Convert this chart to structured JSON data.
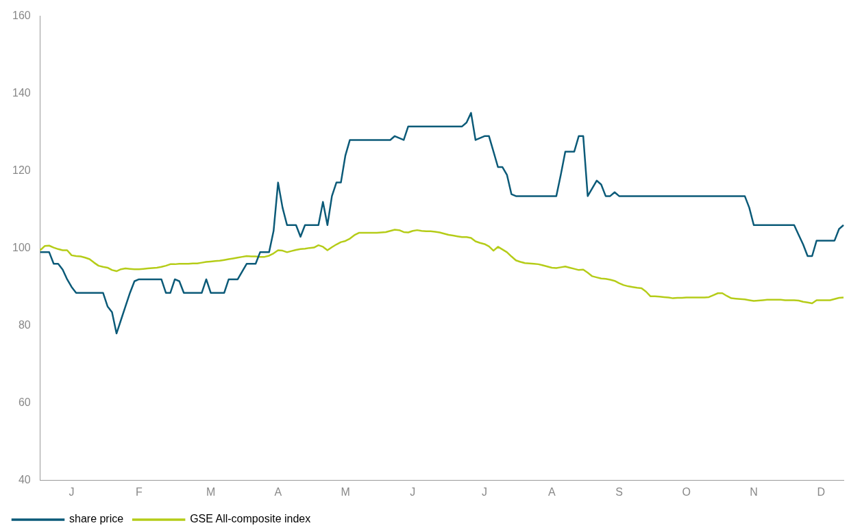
{
  "chart_data": {
    "type": "line",
    "categories": [
      null,
      null,
      null,
      null,
      null,
      null,
      null,
      "J",
      null,
      null,
      null,
      null,
      null,
      null,
      null,
      null,
      null,
      null,
      null,
      null,
      null,
      null,
      "F",
      null,
      null,
      null,
      null,
      null,
      null,
      null,
      null,
      null,
      null,
      null,
      null,
      null,
      null,
      null,
      "M",
      null,
      null,
      null,
      null,
      null,
      null,
      null,
      null,
      null,
      null,
      null,
      null,
      null,
      null,
      "A",
      null,
      null,
      null,
      null,
      null,
      null,
      null,
      null,
      null,
      null,
      null,
      null,
      null,
      null,
      "M",
      null,
      null,
      null,
      null,
      null,
      null,
      null,
      null,
      null,
      null,
      null,
      null,
      null,
      null,
      "J",
      null,
      null,
      null,
      null,
      null,
      null,
      null,
      null,
      null,
      null,
      null,
      null,
      null,
      null,
      null,
      "J",
      null,
      null,
      null,
      null,
      null,
      null,
      null,
      null,
      null,
      null,
      null,
      null,
      null,
      null,
      "A",
      null,
      null,
      null,
      null,
      null,
      null,
      null,
      null,
      null,
      null,
      null,
      null,
      null,
      null,
      "S",
      null,
      null,
      null,
      null,
      null,
      null,
      null,
      null,
      null,
      null,
      null,
      null,
      null,
      null,
      "O",
      null,
      null,
      null,
      null,
      null,
      null,
      null,
      null,
      null,
      null,
      null,
      null,
      null,
      null,
      "N",
      null,
      null,
      null,
      null,
      null,
      null,
      null,
      null,
      null,
      null,
      null,
      null,
      null,
      null,
      "D",
      null,
      null,
      null,
      null,
      null
    ],
    "series": [
      {
        "name": "share price",
        "color": "#0b5a78",
        "values": [
          99,
          99,
          99,
          96,
          96,
          94.5,
          92,
          90,
          88.5,
          88.5,
          88.5,
          88.5,
          88.5,
          88.5,
          88.5,
          85,
          83.5,
          78,
          81.5,
          85,
          88.5,
          91.5,
          92,
          92,
          92,
          92,
          92,
          92,
          88.5,
          88.5,
          92,
          91.5,
          88.5,
          88.5,
          88.5,
          88.5,
          88.5,
          92,
          88.5,
          88.5,
          88.5,
          88.5,
          92,
          92,
          92,
          94,
          96,
          96,
          96,
          99,
          99,
          99,
          104.5,
          117,
          110.5,
          106,
          106,
          106,
          103,
          106,
          106,
          106,
          106,
          112,
          106,
          113.5,
          117,
          117,
          124,
          128,
          128,
          128,
          128,
          128,
          128,
          128,
          128,
          128,
          128,
          129,
          128.5,
          128,
          131.5,
          131.5,
          131.5,
          131.5,
          131.5,
          131.5,
          131.5,
          131.5,
          131.5,
          131.5,
          131.5,
          131.5,
          131.5,
          132.5,
          135,
          128,
          128.5,
          129,
          129,
          125,
          121,
          121,
          119,
          114,
          113.5,
          113.5,
          113.5,
          113.5,
          113.5,
          113.5,
          113.5,
          113.5,
          113.5,
          113.5,
          119,
          125,
          125,
          125,
          129,
          129,
          113.5,
          115.5,
          117.5,
          116.5,
          113.5,
          113.5,
          114.5,
          113.5,
          113.5,
          113.5,
          113.5,
          113.5,
          113.5,
          113.5,
          113.5,
          113.5,
          113.5,
          113.5,
          113.5,
          113.5,
          113.5,
          113.5,
          113.5,
          113.5,
          113.5,
          113.5,
          113.5,
          113.5,
          113.5,
          113.5,
          113.5,
          113.5,
          113.5,
          113.5,
          113.5,
          113.5,
          110.5,
          106,
          106,
          106,
          106,
          106,
          106,
          106,
          106,
          106,
          106,
          103.5,
          101,
          98,
          98,
          102,
          102,
          102,
          102,
          102,
          105,
          106
        ]
      },
      {
        "name": "GSE All-composite index",
        "color": "#b5cc18",
        "values": [
          99.5,
          100.6,
          100.7,
          100.2,
          99.8,
          99.5,
          99.5,
          98.2,
          98,
          97.9,
          97.6,
          97.2,
          96.3,
          95.5,
          95.2,
          95,
          94.4,
          94.1,
          94.6,
          94.8,
          94.7,
          94.6,
          94.6,
          94.7,
          94.8,
          94.9,
          95,
          95.2,
          95.5,
          95.9,
          95.9,
          96,
          96,
          96,
          96.1,
          96.1,
          96.3,
          96.5,
          96.6,
          96.7,
          96.8,
          97,
          97.2,
          97.4,
          97.6,
          97.8,
          98,
          97.9,
          97.9,
          97.8,
          97.8,
          98.1,
          98.7,
          99.5,
          99.4,
          99,
          99.3,
          99.6,
          99.8,
          99.9,
          100.1,
          100.2,
          100.8,
          100.4,
          99.5,
          100.3,
          101,
          101.6,
          101.9,
          102.5,
          103.4,
          104,
          104,
          104,
          104,
          104,
          104.1,
          104.2,
          104.5,
          104.8,
          104.7,
          104.2,
          104.1,
          104.5,
          104.7,
          104.5,
          104.4,
          104.4,
          104.3,
          104.1,
          103.8,
          103.5,
          103.3,
          103.1,
          102.9,
          102.9,
          102.7,
          101.8,
          101.4,
          101.1,
          100.5,
          99.4,
          100.4,
          99.7,
          99,
          97.9,
          96.9,
          96.5,
          96.2,
          96.1,
          96,
          95.9,
          95.6,
          95.3,
          95,
          94.9,
          95.1,
          95.3,
          95,
          94.7,
          94.4,
          94.5,
          93.7,
          92.8,
          92.5,
          92.2,
          92.1,
          91.9,
          91.6,
          91,
          90.5,
          90.2,
          90,
          89.8,
          89.7,
          88.8,
          87.6,
          87.6,
          87.5,
          87.4,
          87.3,
          87.1,
          87.2,
          87.2,
          87.3,
          87.3,
          87.3,
          87.3,
          87.3,
          87.4,
          87.9,
          88.4,
          88.4,
          87.7,
          87.1,
          87,
          86.9,
          86.8,
          86.6,
          86.4,
          86.5,
          86.6,
          86.7,
          86.7,
          86.7,
          86.7,
          86.6,
          86.6,
          86.6,
          86.5,
          86.2,
          86,
          85.8,
          86.6,
          86.6,
          86.6,
          86.6,
          86.9,
          87.2,
          87.3
        ]
      }
    ],
    "ylim": [
      40,
      160
    ],
    "yticks": [
      40,
      60,
      80,
      100,
      120,
      140,
      160
    ],
    "grid": false,
    "legend": "bottom left",
    "marker": "none",
    "line_style": "solid"
  }
}
